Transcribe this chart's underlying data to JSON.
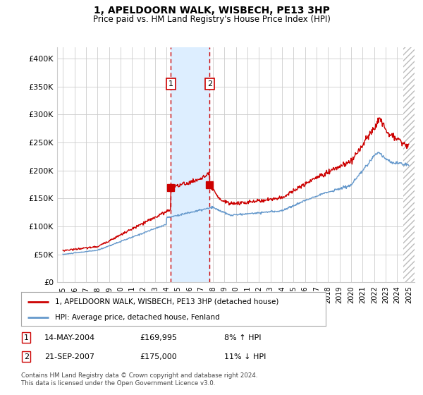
{
  "title": "1, APELDOORN WALK, WISBECH, PE13 3HP",
  "subtitle": "Price paid vs. HM Land Registry's House Price Index (HPI)",
  "ylim": [
    0,
    420000
  ],
  "xlim_start": 1994.5,
  "xlim_end": 2025.5,
  "legend_line1": "1, APELDOORN WALK, WISBECH, PE13 3HP (detached house)",
  "legend_line2": "HPI: Average price, detached house, Fenland",
  "sale1_date": "14-MAY-2004",
  "sale1_price": "£169,995",
  "sale1_hpi": "8% ↑ HPI",
  "sale1_year": 2004.37,
  "sale1_value": 169995,
  "sale2_date": "21-SEP-2007",
  "sale2_price": "£175,000",
  "sale2_hpi": "11% ↓ HPI",
  "sale2_year": 2007.72,
  "sale2_value": 175000,
  "line_color_red": "#cc0000",
  "line_color_blue": "#6699cc",
  "shade_color": "#ddeeff",
  "grid_color": "#cccccc",
  "hatch_color": "#bbbbbb",
  "footnote": "Contains HM Land Registry data © Crown copyright and database right 2024.\nThis data is licensed under the Open Government Licence v3.0.",
  "background_color": "#ffffff"
}
